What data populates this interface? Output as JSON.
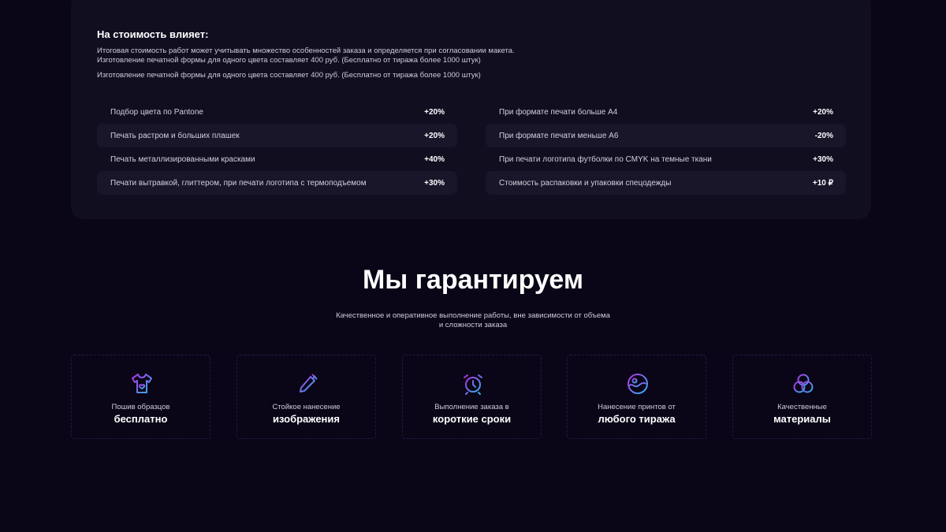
{
  "pricing": {
    "title": "На стоимость влияет:",
    "paragraph_1_line_1": "Итоговая стоимость работ может учитывать множество особенностей заказа и определяется при согласовании макета.",
    "paragraph_1_line_2": "Изготовление печатной формы для одного цвета составляет 400 руб. (Бесплатно от тиража более 1000 штук)",
    "paragraph_2": "Изготовление печатной формы для одного цвета составляет 400 руб. (Бесплатно от тиража более 1000 штук)",
    "left": [
      {
        "label": "Подбор цвета по Pantone",
        "value": "+20%"
      },
      {
        "label": "Печать растром и больших плашек",
        "value": "+20%"
      },
      {
        "label": "Печать металлизированными красками",
        "value": "+40%"
      },
      {
        "label": "Печати вытравкой, глиттером, при печати логотипа с термоподъемом",
        "value": "+30%"
      }
    ],
    "right": [
      {
        "label": "При формате печати больше А4",
        "value": "+20%"
      },
      {
        "label": "При формате печати меньше А6",
        "value": "-20%"
      },
      {
        "label": "При печати логотипа футболки по CMYK на темные ткани",
        "value": "+30%"
      },
      {
        "label": "Стоимость распаковки и упаковки спецодежды",
        "value": "+10 ₽"
      }
    ]
  },
  "guarantee": {
    "title": "Мы гарантируем",
    "subtitle_line_1": "Качественное и оперативное выполнение работы, вне зависимости от объема",
    "subtitle_line_2": "и сложности заказа",
    "items": [
      {
        "icon": "t-shirt-icon",
        "small": "Пошив образцов",
        "bold": "бесплатно"
      },
      {
        "icon": "pen-icon",
        "small": "Стойкое нанесение",
        "bold": "изображения"
      },
      {
        "icon": "alarm-clock-icon",
        "small": "Выполнение заказа в",
        "bold": "короткие сроки"
      },
      {
        "icon": "image-circle-icon",
        "small": "Нанесение принтов от",
        "bold": "любого тиража"
      },
      {
        "icon": "circles-icon",
        "small": "Качественные",
        "bold": "материалы"
      }
    ]
  },
  "colors": {
    "gradient_start": "#b030e0",
    "gradient_end": "#30b0f0",
    "background": "#0a0617"
  }
}
